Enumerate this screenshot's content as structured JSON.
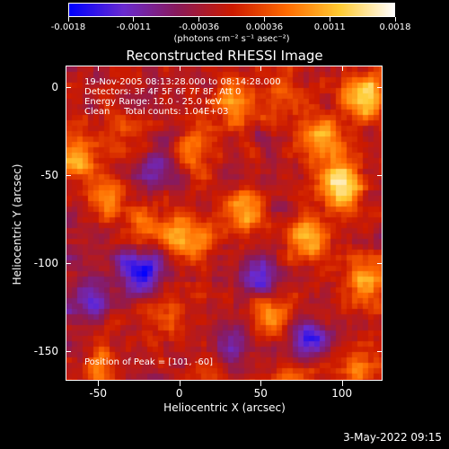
{
  "colorbar": {
    "ticks": [
      "-0.0018",
      "-0.0011",
      "-0.00036",
      "0.00036",
      "0.0011",
      "0.0018"
    ],
    "units": "(photons cm⁻² s⁻¹ asec⁻²)",
    "colors": [
      "#0000ff",
      "#6a2bd0",
      "#8a1a5a",
      "#cc1a00",
      "#ff6a00",
      "#ffcc33",
      "#ffffff"
    ]
  },
  "chart_data": {
    "type": "heatmap",
    "title": "Reconstructed RHESSI Image",
    "xlabel": "Heliocentric X (arcsec)",
    "ylabel": "Heliocentric Y (arcsec)",
    "xlim": [
      -70,
      125
    ],
    "ylim": [
      -167,
      12
    ],
    "xticks": [
      "-50",
      "0",
      "50",
      "100"
    ],
    "yticks": [
      "0",
      "-50",
      "-100",
      "-150"
    ],
    "value_range": [
      -0.0018,
      0.0018
    ],
    "peak_position": [
      101,
      -60
    ],
    "bright_sources": [
      {
        "x": 100,
        "y": -55,
        "level": 0.0018
      },
      {
        "x": 115,
        "y": -5,
        "level": 0.0016
      },
      {
        "x": 90,
        "y": -30,
        "level": 0.0014
      },
      {
        "x": 80,
        "y": -85,
        "level": 0.0013
      },
      {
        "x": 35,
        "y": -10,
        "level": 0.0012
      },
      {
        "x": 5,
        "y": -85,
        "level": 0.0012
      },
      {
        "x": -65,
        "y": -40,
        "level": 0.0013
      },
      {
        "x": 40,
        "y": -70,
        "level": 0.001
      },
      {
        "x": 115,
        "y": -110,
        "level": 0.0011
      },
      {
        "x": -45,
        "y": -65,
        "level": 0.0009
      },
      {
        "x": 55,
        "y": -130,
        "level": 0.001
      },
      {
        "x": -20,
        "y": -80,
        "level": 0.0009
      },
      {
        "x": 10,
        "y": -35,
        "level": 0.0008
      },
      {
        "x": 110,
        "y": -160,
        "level": 0.0009
      },
      {
        "x": 25,
        "y": -155,
        "level": 0.0008
      },
      {
        "x": -50,
        "y": -160,
        "level": 0.0008
      },
      {
        "x": 70,
        "y": -165,
        "level": 0.0008
      },
      {
        "x": -35,
        "y": -30,
        "level": 0.0007
      },
      {
        "x": 65,
        "y": -5,
        "level": 0.0008
      },
      {
        "x": -10,
        "y": -130,
        "level": 0.0007
      }
    ],
    "dim_regions": [
      {
        "x": -25,
        "y": -105,
        "level": -0.0016
      },
      {
        "x": 30,
        "y": -150,
        "level": -0.0014
      },
      {
        "x": 50,
        "y": -110,
        "level": -0.0012
      },
      {
        "x": -55,
        "y": -120,
        "level": -0.001
      },
      {
        "x": 80,
        "y": -145,
        "level": -0.0011
      },
      {
        "x": -15,
        "y": -45,
        "level": -0.0009
      }
    ]
  },
  "annotation": {
    "time": "19-Nov-2005 08:13:28.000 to 08:14:28.000",
    "detectors": "Detectors: 3F 4F 5F 6F 7F 8F, Att 0",
    "energy": "Energy Range: 12.0 - 25.0 keV",
    "clean": "Clean     Total counts: 1.04E+03",
    "peak": "Position of Peak = [101, -60]"
  },
  "timestamp": "3-May-2022 09:15"
}
